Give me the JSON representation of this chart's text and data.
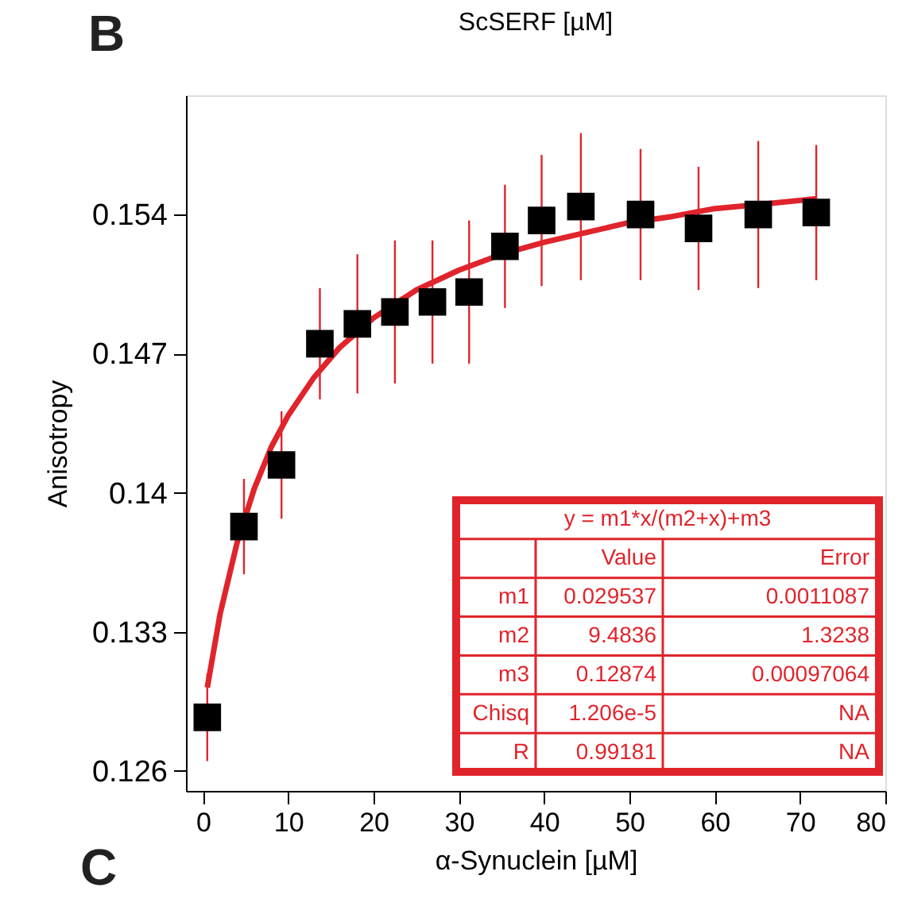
{
  "chart_data": {
    "type": "scatter",
    "title": "ScSERF [µM]",
    "xlabel": "α-Synuclein [µM]",
    "ylabel": "Anisotropy",
    "xlim": [
      -2,
      80
    ],
    "xticks": [
      0,
      10,
      20,
      30,
      40,
      50,
      60,
      70,
      80
    ],
    "ylim": [
      0.125,
      0.16
    ],
    "yticks": [
      0.126,
      0.133,
      0.14,
      0.147,
      0.154
    ],
    "grid": false,
    "x": [
      0.5,
      4.8,
      9.2,
      13.7,
      18.1,
      22.5,
      26.9,
      31.2,
      35.4,
      39.7,
      44.3,
      51.3,
      58.1,
      65.1,
      71.9
    ],
    "series": [
      {
        "marker": "square",
        "color": "#000000",
        "values": [
          0.1287,
          0.1383,
          0.1414,
          0.1475,
          0.1485,
          0.1491,
          0.1496,
          0.1501,
          0.1524,
          0.1537,
          0.1544,
          0.154,
          0.1533,
          0.154,
          0.1541
        ],
        "errors": [
          0.0022,
          0.0024,
          0.0027,
          0.0028,
          0.0035,
          0.0036,
          0.0031,
          0.0036,
          0.0031,
          0.0033,
          0.0037,
          0.0033,
          0.0031,
          0.0037,
          0.0034
        ]
      },
      {
        "type": "line",
        "color": "#e0242b",
        "line_style": "solid",
        "x": [
          0.5,
          2,
          4,
          6,
          8,
          10,
          13,
          16,
          20,
          25,
          30,
          35,
          40,
          45,
          50,
          55,
          60,
          65,
          72
        ],
        "values": [
          0.1302,
          0.1339,
          0.1375,
          0.1402,
          0.1423,
          0.1439,
          0.1458,
          0.1473,
          0.1488,
          0.1502,
          0.1512,
          0.152,
          0.1526,
          0.1531,
          0.1536,
          0.1539,
          0.1543,
          0.1545,
          0.1548
        ]
      }
    ],
    "annotations": [
      "B",
      "C",
      "y = m1*x/(m2+x)+m3",
      "Value",
      "Error",
      "m1",
      "0.029537",
      "0.0011087",
      "m2",
      "9.4836",
      "1.3238",
      "m3",
      "0.12874",
      "0.00097064",
      "Chisq",
      "1.206e-5",
      "NA",
      "R",
      "0.99181",
      "NA"
    ]
  }
}
